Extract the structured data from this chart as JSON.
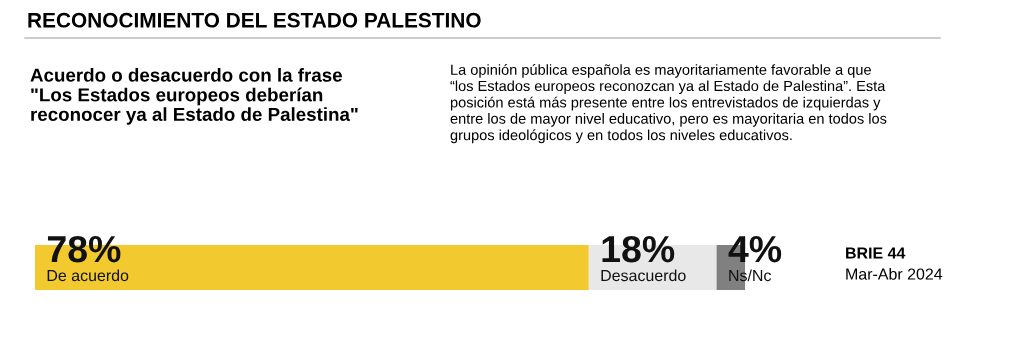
{
  "chart_data": {
    "type": "bar",
    "orientation": "horizontal",
    "stacked": true,
    "legend": false,
    "title": "RECONOCIMIENTO DEL ESTADO PALESTINO",
    "subtitle": "Acuerdo o desacuerdo con la frase\n\"Los Estados europeos deberían\nreconocer ya al Estado de Palestina\"",
    "categories": [
      null
    ],
    "series": [
      {
        "name": "De acuerdo",
        "color": "#f2c92e",
        "values": [
          78
        ],
        "value_labels": [
          "78%"
        ]
      },
      {
        "name": "Desacuerdo",
        "color": "#e8e8e8",
        "values": [
          18
        ],
        "value_labels": [
          "18%"
        ]
      },
      {
        "name": "Ns/Nc",
        "color": "#808080",
        "values": [
          4
        ],
        "value_labels": [
          "4%"
        ]
      }
    ],
    "annotations": [
      "La opinión pública española es mayoritariamente favorable a que\n“los Estados europeos reconozcan ya al Estado de Palestina”. Esta\nposición está más presente entre los entrevistados de izquierdas y\nentre los de mayor nivel educativo, pero es mayoritaria en todos los\ngrupos ideológicos y en todos los niveles educativos.",
      "BRIE 44",
      "Mar-Abr 2024"
    ]
  }
}
